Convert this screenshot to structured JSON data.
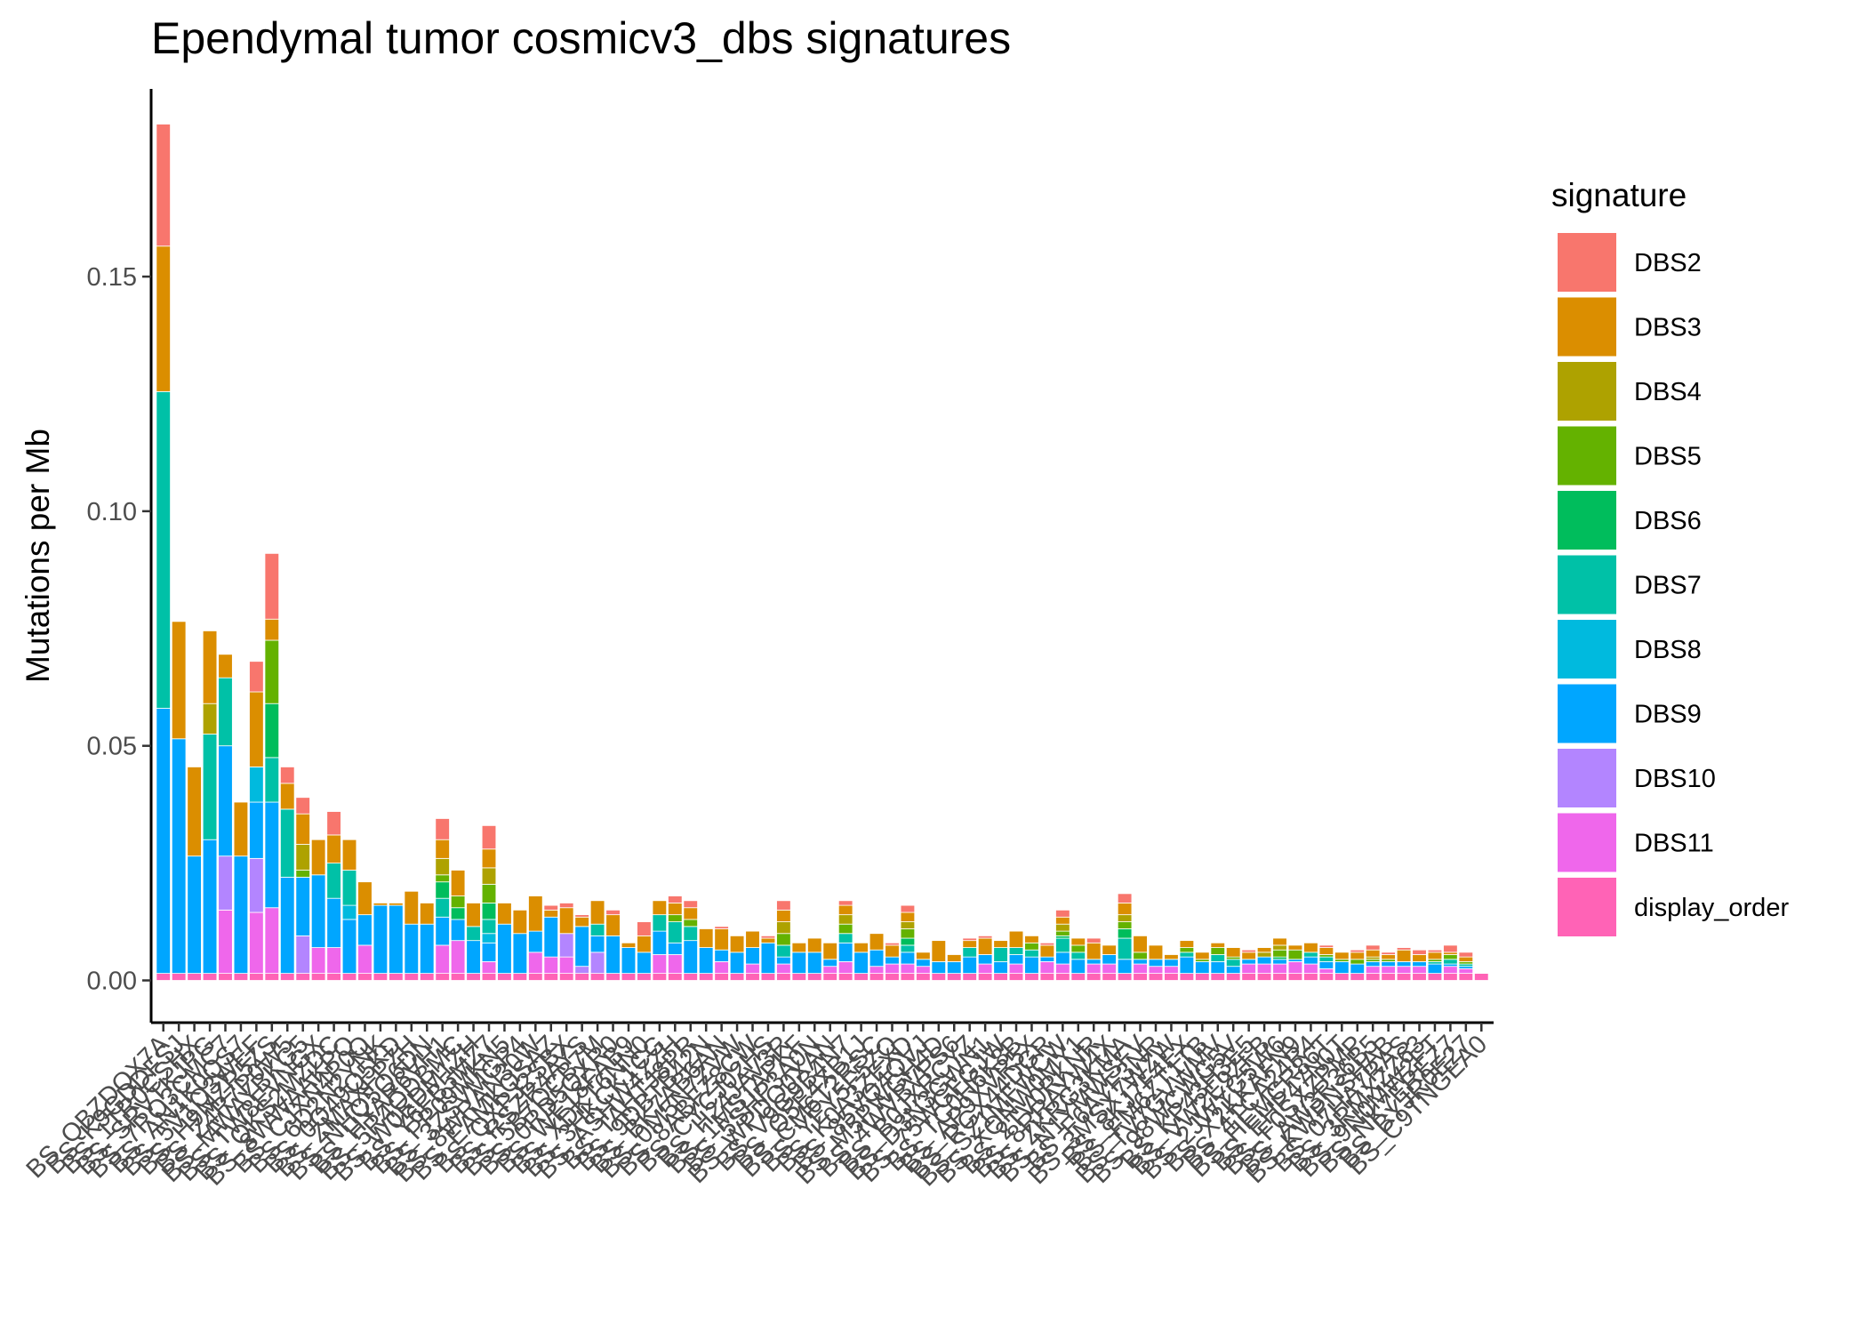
{
  "chart_data": {
    "type": "bar",
    "stacked": true,
    "title": "Ependymal tumor cosmicv3_dbs signatures",
    "xlabel": "",
    "ylabel": "Mutations per Mb",
    "ylim": [
      -0.009,
      0.19
    ],
    "yticks": [
      0.0,
      0.05,
      0.1,
      0.15
    ],
    "ytick_labels": [
      "0.00",
      "0.05",
      "0.10",
      "0.15"
    ],
    "grid": false,
    "legend": {
      "title": "signature",
      "placement": "right"
    },
    "categories": [
      "BS_QBZDQX7A",
      "BS_K9GDDFSJ",
      "BS_1TR0CSHX",
      "BS_SRVTKJPG",
      "BS_7RQ3CMC7",
      "BS_AN1K0QS7",
      "BS_5V1Q3WEF",
      "BS_H9MZR5ZS",
      "BS_Z4R7P0W5",
      "BS_MWAYBKG5",
      "BS_TW8EVNGX",
      "BS_QKS2MZDC",
      "BS_8WWAAKPQ",
      "BS_CJXN4P0Q",
      "BS_6D2N2YNK",
      "BS_0Q49Q5KD",
      "BS_ZMAXFPZH",
      "BS_NHQ5Q6DN",
      "BS_HYAR6VH1",
      "BS_5R4QDBMC",
      "BS_W0EDM1ZH",
      "BS_Y6FB5MZ7",
      "BS_PP09MKN5",
      "BS_3ZSVMGP4",
      "BS_8WRAN30W",
      "BS_EAMKQSAZ",
      "BS_QXPJ2SBX",
      "BS_RSZR4AYS",
      "BS_5B7QCB7M",
      "BS_0RD5QXR0",
      "BS_WE18FAB9",
      "BS_XDKT6NN0",
      "BS_3HKCK1CG",
      "BS_ASHW4ZZH",
      "BS_TAHTJ8PR",
      "BS_9DBTB42N",
      "BS_BK7AB6AN",
      "BS_0M5N7ZVW",
      "BS_8ABFZ8CW",
      "BS_CYCJ02HS",
      "BS_H24JAV3R",
      "BS_1MSTAPKF",
      "BS_5SHP3A0N",
      "BS_WPDQ0XAN",
      "BS_V9G9B4N7",
      "BS_Q5E4XB1J",
      "BS_CM6T2RSC",
      "BS_YEY5F5ZQ",
      "BS_K0A3ZEXD",
      "BS_85VQ4QVJ",
      "BS_M5PWGH4D",
      "BS_4WVBVPS6",
      "BS_B0JXRCYZ",
      "BS_D3N3GWN1",
      "BS_75WGFGJW",
      "BS_TC0H6K8B",
      "BS_AP9XVR5X",
      "BS_RGX44DGR",
      "BS_SZ1MFWCW",
      "BS_XQNW0MY1",
      "BS_2TV0RKNR",
      "BS_8RRAYW4X",
      "BS_ZKRG3KMA",
      "BS_N1YMWSFV",
      "BS_F6AYF3NR",
      "BS_3MSX7WZW",
      "BS_8KJ7F4EX",
      "BS_FM6ZT1TB",
      "BS_TV7GVWMV",
      "BS_98WCWG5V",
      "BS_KP43H3E5",
      "BS_VW2E9ZFB",
      "BS_2JWYG5W6",
      "BS_X2KKAFN9",
      "BS_4TCA24R4",
      "BS_HEMCR86T",
      "BS_EHP47N0T",
      "BS_F0SXZPMP",
      "BS_AW3R36B5",
      "BS_KWPNSHAB",
      "BS_07HA7RAS",
      "BS_3RMXZZ63",
      "BS_9N0MW2FT",
      "BS_NK7EREZ7",
      "BS_BYJR0E27",
      "BS_C9TNGEA0"
    ],
    "series": [
      {
        "name": "display_order",
        "values": [
          0.0015,
          0.0015,
          0.0015,
          0.0015,
          0.0015,
          0.0015,
          0.0015,
          0.0015,
          0.0015,
          0.0015,
          0.0015,
          0.0015,
          0.0015,
          0.0015,
          0.0015,
          0.0015,
          0.0015,
          0.0015,
          0.0015,
          0.0015,
          0.0015,
          0.0015,
          0.0015,
          0.0015,
          0.0015,
          0.0015,
          0.0015,
          0.0015,
          0.0015,
          0.0015,
          0.0015,
          0.0015,
          0.0015,
          0.0015,
          0.0015,
          0.0015,
          0.0015,
          0.0015,
          0.0015,
          0.0015,
          0.0015,
          0.0015,
          0.0015,
          0.0015,
          0.0015,
          0.0015,
          0.0015,
          0.0015,
          0.0015,
          0.0015,
          0.0015,
          0.0015,
          0.0015,
          0.0015,
          0.0015,
          0.0015,
          0.0015,
          0.0015,
          0.0015,
          0.0015,
          0.0015,
          0.0015,
          0.0015,
          0.0015,
          0.0015,
          0.0015,
          0.0015,
          0.0015,
          0.0015,
          0.0015,
          0.0015,
          0.0015,
          0.0015,
          0.0015,
          0.0015,
          0.0015,
          0.0015,
          0.0015,
          0.0015,
          0.0015,
          0.0015,
          0.0015,
          0.0015,
          0.0015,
          0.0015,
          0.0015
        ]
      },
      {
        "name": "DBS11",
        "values": [
          0,
          0,
          0,
          0,
          0.0135,
          0,
          0.013,
          0.014,
          0,
          0,
          0.0055,
          0.0055,
          0,
          0.006,
          0,
          0,
          0,
          0,
          0.006,
          0.007,
          0,
          0.0025,
          0,
          0,
          0.0045,
          0.0035,
          0.0035,
          0,
          0,
          0,
          0,
          0,
          0.004,
          0.004,
          0,
          0,
          0.0025,
          0,
          0.002,
          0,
          0.002,
          0,
          0,
          0.0015,
          0.0025,
          0,
          0.0015,
          0.002,
          0.002,
          0.0015,
          0,
          0,
          0,
          0.002,
          0,
          0.002,
          0,
          0.0025,
          0.002,
          0,
          0.002,
          0.002,
          0,
          0.002,
          0.0015,
          0.0015,
          0,
          0,
          0,
          0,
          0.002,
          0.002,
          0.002,
          0.0025,
          0.002,
          0.001,
          0,
          0,
          0.0015,
          0.0015,
          0.0015,
          0.0015,
          0,
          0.0015,
          0.001,
          0
        ]
      },
      {
        "name": "DBS10",
        "values": [
          0,
          0,
          0,
          0,
          0.0115,
          0,
          0.0115,
          0,
          0,
          0.008,
          0,
          0,
          0,
          0,
          0,
          0,
          0,
          0,
          0,
          0,
          0,
          0,
          0,
          0,
          0,
          0,
          0.005,
          0.0015,
          0.0045,
          0,
          0,
          0,
          0,
          0,
          0,
          0,
          0,
          0,
          0,
          0,
          0,
          0,
          0,
          0,
          0,
          0,
          0,
          0,
          0,
          0,
          0,
          0,
          0,
          0,
          0,
          0,
          0,
          0,
          0,
          0,
          0,
          0,
          0,
          0,
          0,
          0,
          0,
          0,
          0,
          0,
          0,
          0,
          0,
          0,
          0,
          0,
          0,
          0,
          0,
          0,
          0,
          0,
          0,
          0,
          0,
          0
        ]
      },
      {
        "name": "DBS9",
        "values": [
          0.0565,
          0.05,
          0.025,
          0.0285,
          0.0235,
          0.025,
          0.012,
          0.0225,
          0.0205,
          0.0125,
          0.0155,
          0.0105,
          0.0115,
          0.0065,
          0.0145,
          0.0145,
          0.0105,
          0.0105,
          0.006,
          0.0045,
          0.007,
          0.004,
          0.0105,
          0.0085,
          0.0045,
          0.0085,
          0.0,
          0.0085,
          0.0035,
          0.008,
          0.0055,
          0.0045,
          0.005,
          0.0025,
          0.007,
          0.0055,
          0.0025,
          0.0045,
          0.0035,
          0.0065,
          0.0015,
          0.0045,
          0.0045,
          0.0015,
          0.004,
          0.0045,
          0.0035,
          0.0015,
          0.0025,
          0.0015,
          0.0025,
          0.0025,
          0.0035,
          0.002,
          0.0025,
          0.002,
          0.0035,
          0.001,
          0.0025,
          0.003,
          0.001,
          0.002,
          0.003,
          0.001,
          0.0015,
          0.0015,
          0.0035,
          0.0025,
          0.0025,
          0.0015,
          0.001,
          0.0015,
          0.001,
          0.0005,
          0.0015,
          0.0015,
          0.0025,
          0.002,
          0.001,
          0.001,
          0.001,
          0.001,
          0.002,
          0.0005,
          0.0005,
          0
        ]
      },
      {
        "name": "DBS8",
        "values": [
          0,
          0,
          0,
          0,
          0,
          0,
          0.0075,
          0,
          0,
          0,
          0,
          0,
          0.003,
          0,
          0,
          0,
          0,
          0,
          0,
          0,
          0,
          0.002,
          0,
          0,
          0,
          0,
          0,
          0,
          0,
          0,
          0,
          0,
          0,
          0,
          0,
          0,
          0,
          0,
          0,
          0,
          0,
          0,
          0,
          0,
          0,
          0,
          0,
          0,
          0,
          0,
          0,
          0,
          0,
          0,
          0,
          0,
          0,
          0,
          0,
          0,
          0,
          0,
          0,
          0,
          0,
          0,
          0,
          0,
          0,
          0,
          0,
          0,
          0,
          0,
          0,
          0,
          0,
          0,
          0,
          0,
          0,
          0,
          0,
          0,
          0,
          0
        ]
      },
      {
        "name": "DBS7",
        "values": [
          0.0675,
          0,
          0,
          0.0225,
          0.0145,
          0,
          0,
          0.0095,
          0.0145,
          0,
          0,
          0.0075,
          0.0075,
          0,
          0,
          0,
          0,
          0,
          0.004,
          0,
          0.003,
          0.003,
          0,
          0,
          0,
          0,
          0,
          0,
          0.0025,
          0,
          0,
          0,
          0.0035,
          0.0045,
          0.003,
          0,
          0,
          0,
          0,
          0,
          0.0025,
          0,
          0,
          0,
          0.002,
          0,
          0,
          0,
          0.0015,
          0,
          0,
          0,
          0.002,
          0,
          0.003,
          0.0015,
          0.0015,
          0,
          0.003,
          0.0015,
          0,
          0,
          0.0045,
          0,
          0,
          0,
          0.001,
          0,
          0.0015,
          0.0015,
          0,
          0,
          0,
          0,
          0.001,
          0.001,
          0,
          0,
          0,
          0,
          0,
          0,
          0.0005,
          0.001,
          0.0005,
          0
        ]
      },
      {
        "name": "DBS6",
        "values": [
          0,
          0,
          0,
          0,
          0,
          0,
          0,
          0.0115,
          0,
          0,
          0,
          0,
          0,
          0,
          0,
          0,
          0,
          0,
          0.0035,
          0.0025,
          0,
          0.0035,
          0,
          0,
          0,
          0,
          0,
          0,
          0,
          0,
          0,
          0,
          0,
          0,
          0,
          0,
          0,
          0,
          0,
          0,
          0,
          0,
          0,
          0,
          0,
          0,
          0,
          0,
          0.0015,
          0,
          0,
          0,
          0,
          0,
          0,
          0,
          0,
          0,
          0.0005,
          0,
          0,
          0,
          0.002,
          0,
          0,
          0,
          0,
          0,
          0,
          0,
          0,
          0,
          0.0005,
          0,
          0,
          0,
          0,
          0,
          0,
          0,
          0,
          0,
          0,
          0,
          0,
          0
        ]
      },
      {
        "name": "DBS5",
        "values": [
          0,
          0,
          0,
          0,
          0,
          0,
          0,
          0.0135,
          0,
          0.0015,
          0,
          0,
          0,
          0,
          0,
          0,
          0,
          0,
          0.0015,
          0.0025,
          0,
          0.004,
          0,
          0,
          0,
          0,
          0,
          0,
          0,
          0,
          0,
          0,
          0,
          0.0015,
          0.0015,
          0,
          0,
          0,
          0,
          0,
          0.0025,
          0,
          0,
          0,
          0.002,
          0,
          0,
          0,
          0.002,
          0,
          0,
          0,
          0,
          0,
          0,
          0,
          0.0015,
          0,
          0.001,
          0.0015,
          0,
          0,
          0.0015,
          0.0015,
          0,
          0,
          0.001,
          0.0005,
          0.0015,
          0.0005,
          0,
          0,
          0.0015,
          0.002,
          0,
          0.0005,
          0.0005,
          0.001,
          0.0005,
          0.0005,
          0,
          0,
          0.0005,
          0.001,
          0.0005,
          0
        ]
      },
      {
        "name": "DBS4",
        "values": [
          0,
          0,
          0,
          0.0065,
          0,
          0,
          0,
          0,
          0,
          0.0055,
          0,
          0,
          0,
          0,
          0,
          0,
          0,
          0,
          0.0035,
          0,
          0,
          0.0035,
          0,
          0,
          0,
          0,
          0,
          0,
          0,
          0,
          0,
          0,
          0,
          0,
          0,
          0,
          0,
          0,
          0,
          0,
          0.0025,
          0,
          0,
          0,
          0.002,
          0,
          0,
          0,
          0.0015,
          0,
          0,
          0,
          0,
          0,
          0,
          0,
          0,
          0,
          0.0015,
          0,
          0,
          0,
          0.0015,
          0,
          0,
          0,
          0,
          0,
          0,
          0,
          0,
          0.001,
          0.001,
          0,
          0,
          0,
          0,
          0,
          0.0005,
          0,
          0,
          0,
          0,
          0,
          0,
          0
        ]
      },
      {
        "name": "DBS3",
        "values": [
          0.031,
          0.025,
          0.019,
          0.0155,
          0.005,
          0.0115,
          0.016,
          0.0045,
          0.0055,
          0.0065,
          0.0075,
          0.006,
          0.0065,
          0.007,
          0.0005,
          0.0005,
          0.007,
          0.0045,
          0.004,
          0.0055,
          0.005,
          0.004,
          0.0045,
          0.005,
          0.0075,
          0.0015,
          0.0055,
          0.002,
          0.005,
          0.0045,
          0.001,
          0.0035,
          0.003,
          0.0025,
          0.0025,
          0.004,
          0.0045,
          0.0035,
          0.0035,
          0.001,
          0.0025,
          0.002,
          0.003,
          0.0035,
          0.002,
          0.002,
          0.0035,
          0.0025,
          0.002,
          0.0015,
          0.0045,
          0.0015,
          0.0015,
          0.0035,
          0.0015,
          0.0035,
          0.0015,
          0.0025,
          0.0015,
          0.0015,
          0.0035,
          0.002,
          0.0025,
          0.0035,
          0.003,
          0.001,
          0.0015,
          0.0015,
          0.001,
          0.002,
          0.0015,
          0.001,
          0.0015,
          0.001,
          0.002,
          0.0015,
          0.0015,
          0.0015,
          0.0015,
          0.001,
          0.0025,
          0.0015,
          0.0015,
          0.0005,
          0.001,
          0
        ]
      },
      {
        "name": "DBS2",
        "values": [
          0.026,
          0,
          0,
          0,
          0,
          0,
          0.0065,
          0.014,
          0.0035,
          0.0035,
          0,
          0.005,
          0,
          0,
          0,
          0,
          0,
          0,
          0.0045,
          0,
          0,
          0.005,
          0,
          0,
          0,
          0.001,
          0.001,
          0.0005,
          0,
          0.001,
          0,
          0.003,
          0,
          0.0015,
          0.0015,
          0,
          0.0005,
          0,
          0,
          0.0005,
          0.002,
          0,
          0,
          0,
          0.001,
          0,
          0,
          0.0005,
          0.0015,
          0,
          0,
          0,
          0.0005,
          0.0005,
          0,
          0,
          0,
          0.0005,
          0.0015,
          0,
          0.001,
          0,
          0.002,
          0,
          0,
          0,
          0,
          0,
          0,
          0,
          0.0005,
          0,
          0,
          0,
          0,
          0.0005,
          0,
          0.0005,
          0.001,
          0.0005,
          0.0005,
          0.001,
          0.0005,
          0.0015,
          0.001,
          0
        ]
      }
    ],
    "legend_entries": [
      "DBS2",
      "DBS3",
      "DBS4",
      "DBS5",
      "DBS6",
      "DBS7",
      "DBS8",
      "DBS9",
      "DBS10",
      "DBS11",
      "display_order"
    ],
    "colors": {
      "DBS2": "#F8766D",
      "DBS3": "#DB8E00",
      "DBS4": "#AEA200",
      "DBS5": "#64B200",
      "DBS6": "#00BD5C",
      "DBS7": "#00C1A7",
      "DBS8": "#00BADE",
      "DBS9": "#00A6FF",
      "DBS10": "#B385FF",
      "DBS11": "#EF67EB",
      "display_order": "#FF63B6"
    }
  }
}
